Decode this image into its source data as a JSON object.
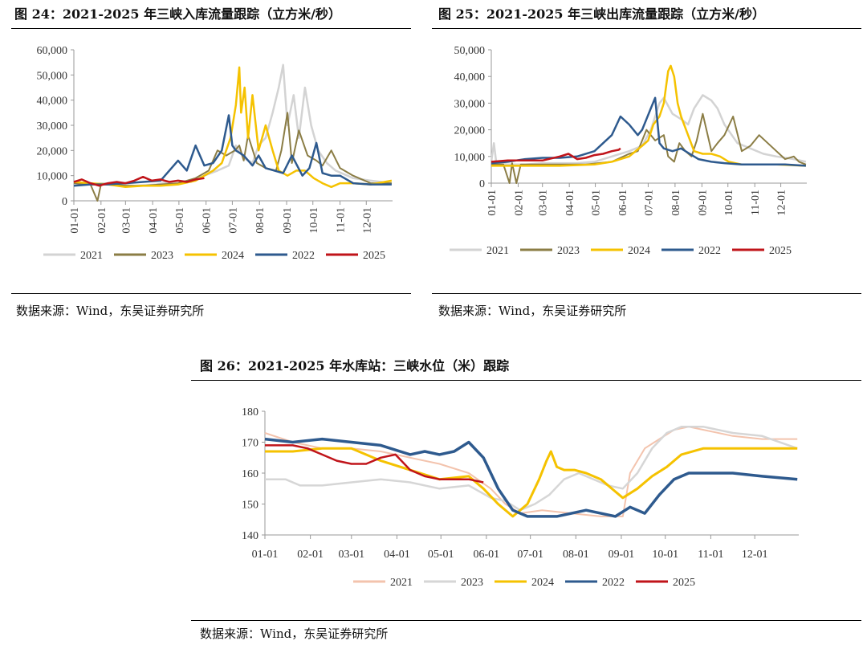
{
  "panels": [
    {
      "title": "图 24：2021-2025 年三峡入库流量跟踪（立方米/秒）",
      "source": "数据来源：Wind，东吴证券研究所"
    },
    {
      "title": "图 25：2021-2025 年三峡出库流量跟踪（立方米/秒）",
      "source": "数据来源：Wind，东吴证券研究所"
    },
    {
      "title": "图 26：2021-2025 年水库站：三峡水位（米）跟踪",
      "source": "数据来源：Wind，东吴证券研究所"
    }
  ],
  "chart_data": [
    {
      "type": "line",
      "title": "图 24：2021-2025 年三峡入库流量跟踪（立方米/秒）",
      "x_ticks": [
        "01-01",
        "02-01",
        "03-01",
        "04-01",
        "05-01",
        "06-01",
        "07-01",
        "08-01",
        "09-01",
        "10-01",
        "11-01",
        "12-01"
      ],
      "y_ticks": [
        "0",
        "10,000",
        "20,000",
        "30,000",
        "40,000",
        "50,000",
        "60,000"
      ],
      "ylim": [
        0,
        60000
      ],
      "legend": "bottom",
      "series": [
        {
          "name": "2021",
          "color": "#d3d3d3",
          "width": 2.5,
          "x": [
            1,
            20,
            35,
            50,
            70,
            95,
            110,
            120,
            135,
            150,
            165,
            178,
            186,
            195,
            205,
            212,
            220,
            228,
            235,
            240,
            245,
            252,
            258,
            265,
            272,
            280,
            290,
            300,
            320,
            340,
            364
          ],
          "y": [
            7000,
            6500,
            7000,
            6500,
            6000,
            6500,
            7500,
            8000,
            7500,
            10000,
            12000,
            14000,
            22000,
            17000,
            15000,
            22000,
            25000,
            35000,
            45000,
            54000,
            30000,
            42000,
            25000,
            45000,
            30000,
            20000,
            15000,
            12000,
            9000,
            8000,
            7000
          ]
        },
        {
          "name": "2023",
          "color": "#8b7d45",
          "width": 2,
          "x": [
            1,
            20,
            28,
            32,
            40,
            60,
            80,
            100,
            120,
            140,
            155,
            165,
            175,
            185,
            190,
            195,
            200,
            210,
            220,
            232,
            238,
            245,
            250,
            258,
            268,
            278,
            285,
            295,
            305,
            320,
            340,
            364
          ],
          "y": [
            7000,
            6500,
            0,
            6500,
            6500,
            6000,
            6000,
            6500,
            7000,
            9000,
            12000,
            20000,
            18000,
            20000,
            22000,
            16000,
            26000,
            15000,
            13000,
            12000,
            20000,
            35000,
            15000,
            28000,
            18000,
            16000,
            14000,
            20000,
            13000,
            10000,
            7000,
            7000
          ]
        },
        {
          "name": "2024",
          "color": "#f5c200",
          "width": 2.5,
          "x": [
            1,
            20,
            40,
            60,
            80,
            100,
            120,
            140,
            160,
            170,
            180,
            186,
            190,
            192,
            196,
            200,
            205,
            212,
            220,
            228,
            235,
            245,
            255,
            265,
            275,
            285,
            295,
            305,
            320,
            340,
            364
          ],
          "y": [
            7500,
            7000,
            6500,
            5500,
            6000,
            6000,
            6500,
            8000,
            12000,
            15000,
            25000,
            38000,
            53000,
            35000,
            45000,
            25000,
            42000,
            20000,
            30000,
            20000,
            12000,
            10000,
            12000,
            12000,
            9000,
            7000,
            5500,
            7000,
            7000,
            6500,
            8000
          ]
        },
        {
          "name": "2022",
          "color": "#2e5a8e",
          "width": 2.5,
          "x": [
            1,
            20,
            40,
            60,
            80,
            100,
            120,
            130,
            140,
            150,
            160,
            170,
            178,
            182,
            186,
            195,
            205,
            212,
            220,
            230,
            240,
            250,
            262,
            270,
            278,
            285,
            295,
            305,
            320,
            340,
            364
          ],
          "y": [
            6000,
            6500,
            6500,
            7000,
            7500,
            8000,
            16000,
            12000,
            22000,
            14000,
            15000,
            20000,
            34000,
            22000,
            20000,
            18000,
            14000,
            18000,
            13000,
            12000,
            11000,
            18000,
            10000,
            13000,
            23000,
            11000,
            10000,
            10000,
            7000,
            6500,
            6500
          ]
        },
        {
          "name": "2025",
          "color": "#c0141a",
          "width": 2.5,
          "x": [
            1,
            10,
            20,
            30,
            40,
            50,
            60,
            70,
            80,
            90,
            100,
            110,
            120,
            130,
            140,
            150
          ],
          "y": [
            7500,
            8500,
            7000,
            6000,
            7000,
            7500,
            7000,
            8000,
            9500,
            8000,
            8500,
            7500,
            8000,
            7500,
            8500,
            9000
          ]
        }
      ]
    },
    {
      "type": "line",
      "title": "图 25：2021-2025 年三峡出库流量跟踪（立方米/秒）",
      "x_ticks": [
        "01-01",
        "02-01",
        "03-01",
        "04-01",
        "05-01",
        "06-01",
        "07-01",
        "08-01",
        "09-01",
        "10-01",
        "11-01",
        "12-01"
      ],
      "y_ticks": [
        "0",
        "10,000",
        "20,000",
        "30,000",
        "40,000",
        "50,000"
      ],
      "ylim": [
        0,
        50000
      ],
      "legend": "bottom",
      "series": [
        {
          "name": "2021",
          "color": "#d3d3d3",
          "width": 2.5,
          "x": [
            1,
            4,
            7,
            12,
            20,
            40,
            60,
            80,
            100,
            120,
            140,
            160,
            175,
            185,
            195,
            200,
            210,
            220,
            228,
            235,
            245,
            255,
            262,
            270,
            285,
            300,
            315,
            330,
            350,
            364
          ],
          "y": [
            8000,
            15000,
            7000,
            7500,
            7000,
            7000,
            7500,
            7500,
            7500,
            8000,
            10000,
            12000,
            14000,
            20000,
            30000,
            32000,
            26000,
            24000,
            22000,
            28000,
            33000,
            31000,
            28000,
            22000,
            15000,
            13000,
            11000,
            10000,
            9000,
            8000
          ]
        },
        {
          "name": "2023",
          "color": "#8b7d45",
          "width": 2,
          "x": [
            1,
            15,
            22,
            25,
            30,
            35,
            50,
            80,
            110,
            140,
            160,
            170,
            180,
            190,
            200,
            205,
            212,
            218,
            225,
            232,
            238,
            245,
            255,
            262,
            270,
            280,
            290,
            300,
            310,
            330,
            340,
            350,
            356,
            364
          ],
          "y": [
            7000,
            7000,
            0,
            7500,
            0,
            7000,
            7000,
            7000,
            7000,
            8000,
            11000,
            12000,
            20000,
            16000,
            18000,
            10000,
            8000,
            15000,
            12000,
            10000,
            16000,
            26000,
            12000,
            15000,
            18000,
            25000,
            12000,
            14000,
            18000,
            12000,
            9000,
            10000,
            8000,
            7000
          ]
        },
        {
          "name": "2024",
          "color": "#f5c200",
          "width": 2.5,
          "x": [
            1,
            40,
            80,
            120,
            140,
            160,
            175,
            182,
            188,
            195,
            200,
            205,
            208,
            212,
            216,
            220,
            228,
            235,
            245,
            255,
            265,
            275,
            290,
            310,
            330,
            364
          ],
          "y": [
            6500,
            6500,
            6500,
            7000,
            8000,
            10000,
            14000,
            16000,
            22000,
            25000,
            30000,
            42000,
            44000,
            40000,
            30000,
            25000,
            18000,
            12000,
            11000,
            11000,
            10000,
            8000,
            7000,
            7000,
            7000,
            6500
          ]
        },
        {
          "name": "2022",
          "color": "#2e5a8e",
          "width": 2.5,
          "x": [
            1,
            20,
            40,
            60,
            80,
            100,
            120,
            140,
            150,
            160,
            170,
            175,
            180,
            185,
            190,
            195,
            200,
            210,
            220,
            230,
            240,
            255,
            270,
            290,
            310,
            340,
            364
          ],
          "y": [
            7500,
            8000,
            9000,
            9500,
            9500,
            10000,
            12000,
            18000,
            25000,
            22000,
            18000,
            20000,
            24000,
            28000,
            32000,
            15000,
            13000,
            12000,
            13000,
            11000,
            9000,
            8000,
            7500,
            7000,
            7000,
            7000,
            6500
          ]
        },
        {
          "name": "2025",
          "color": "#c0141a",
          "width": 2.5,
          "x": [
            1,
            20,
            40,
            60,
            80,
            90,
            100,
            110,
            120,
            130,
            140,
            148,
            150
          ],
          "y": [
            8000,
            8500,
            8500,
            8500,
            10000,
            11000,
            9000,
            9500,
            10500,
            11000,
            12000,
            12500,
            13000
          ]
        }
      ]
    },
    {
      "type": "line",
      "title": "图 26：2021-2025 年水库站：三峡水位（米）跟踪",
      "x_ticks": [
        "01-01",
        "02-01",
        "03-01",
        "04-01",
        "05-01",
        "06-01",
        "07-01",
        "08-01",
        "09-01",
        "10-01",
        "11-01",
        "12-01"
      ],
      "y_ticks": [
        "140",
        "150",
        "160",
        "170",
        "180"
      ],
      "ylim": [
        140,
        180
      ],
      "legend": "bottom",
      "series": [
        {
          "name": "2021",
          "color": "#f3c3ad",
          "width": 2,
          "x": [
            1,
            20,
            40,
            60,
            80,
            100,
            120,
            140,
            155,
            165,
            175,
            190,
            210,
            230,
            245,
            250,
            260,
            270,
            280,
            290,
            300,
            320,
            340,
            364
          ],
          "y": [
            173,
            170,
            168,
            168,
            167,
            165,
            163,
            160,
            155,
            150,
            147,
            148,
            147,
            146,
            146,
            160,
            168,
            171,
            174,
            175,
            174,
            172,
            171,
            171
          ]
        },
        {
          "name": "2023",
          "color": "#d6d6d6",
          "width": 2.5,
          "x": [
            1,
            15,
            25,
            40,
            60,
            80,
            100,
            120,
            140,
            155,
            165,
            175,
            185,
            195,
            205,
            215,
            225,
            235,
            245,
            255,
            265,
            275,
            285,
            300,
            320,
            340,
            364
          ],
          "y": [
            158,
            158,
            156,
            156,
            157,
            158,
            157,
            155,
            156,
            152,
            151,
            148,
            150,
            153,
            158,
            160,
            158,
            156,
            155,
            160,
            168,
            173,
            175,
            175,
            173,
            172,
            168
          ]
        },
        {
          "name": "2024",
          "color": "#f5c200",
          "width": 3,
          "x": [
            1,
            20,
            40,
            60,
            80,
            100,
            120,
            140,
            150,
            160,
            170,
            180,
            188,
            193,
            196,
            200,
            205,
            212,
            220,
            230,
            245,
            255,
            265,
            275,
            285,
            300,
            320,
            340,
            364
          ],
          "y": [
            167,
            167,
            168,
            168,
            164,
            161,
            158,
            159,
            155,
            150,
            146,
            150,
            158,
            164,
            167,
            162,
            161,
            161,
            160,
            158,
            152,
            155,
            159,
            162,
            166,
            168,
            168,
            168,
            168
          ]
        },
        {
          "name": "2022",
          "color": "#2e5a8e",
          "width": 3.5,
          "x": [
            1,
            20,
            40,
            60,
            80,
            100,
            110,
            120,
            130,
            140,
            150,
            160,
            170,
            180,
            200,
            220,
            240,
            250,
            260,
            270,
            280,
            290,
            300,
            320,
            340,
            364
          ],
          "y": [
            171,
            170,
            171,
            170,
            169,
            166,
            167,
            166,
            167,
            170,
            165,
            155,
            148,
            146,
            146,
            148,
            146,
            149,
            147,
            153,
            158,
            160,
            160,
            160,
            159,
            158
          ]
        },
        {
          "name": "2025",
          "color": "#c0141a",
          "width": 2.5,
          "x": [
            1,
            10,
            20,
            30,
            40,
            50,
            60,
            70,
            80,
            90,
            100,
            110,
            120,
            130,
            140,
            150
          ],
          "y": [
            169,
            169,
            169,
            168,
            166,
            164,
            163,
            163,
            165,
            166,
            161,
            159,
            158,
            158,
            158,
            157
          ]
        }
      ]
    }
  ]
}
